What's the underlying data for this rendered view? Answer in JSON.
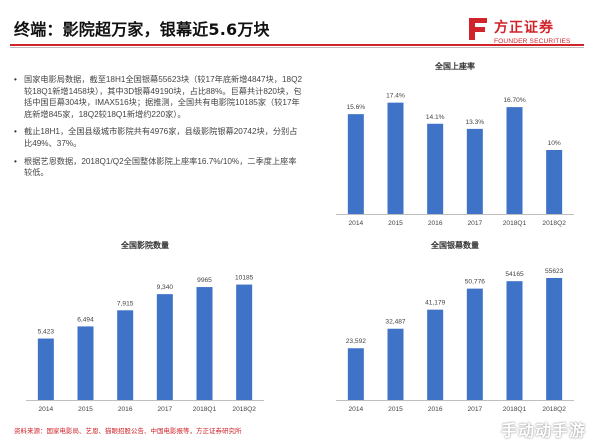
{
  "title": "终端：影院超万家，银幕近5.6万块",
  "logo": {
    "cn": "方正证券",
    "en": "FOUNDER SECURITIES",
    "color": "#d1232a"
  },
  "bullets": [
    "国家电影局数据，截至18H1全国银幕55623块（较17年底新增4847块，18Q2较18Q1新增1458块），其中3D银幕49190块，占比88%。巨幕共计820块，包括中国巨幕304块，IMAX516块；据推测，全国共有电影院10185家（较17年底新增845家，18Q2较18Q1新增约220家）。",
    "截止18H1，全国县级城市影院共有4976家，县级影院银幕20742块，分别占比49%、37%。",
    "根据艺恩数据，2018Q1/Q2全国整体影院上座率16.7%/10%，二季度上座率较低。"
  ],
  "source": "资料来源：国家电影局、艺恩、猫眼招股公告、中国电影报等，方正证券研究所",
  "watermark": "手动动手游",
  "chart_data": [
    {
      "type": "bar",
      "title": "全国上座率",
      "categories": [
        "2014",
        "2015",
        "2016",
        "2017",
        "2018Q1",
        "2018Q2"
      ],
      "values": [
        15.6,
        17.4,
        14.1,
        13.3,
        16.7,
        10.0
      ],
      "value_labels": [
        "15.6%",
        "17.4%",
        "14.1%",
        "13.3%",
        "16.70%",
        "10%"
      ],
      "ylim": [
        0,
        20
      ],
      "color": "#3f73c7",
      "grid": false
    },
    {
      "type": "bar",
      "title": "全国影院数量",
      "categories": [
        "2014",
        "2015",
        "2016",
        "2017",
        "2018Q1",
        "2018Q2"
      ],
      "values": [
        5423,
        6494,
        7915,
        9340,
        9965,
        10185
      ],
      "value_labels": [
        "5,423",
        "6,494",
        "7,915",
        "9,340",
        "9965",
        "10185"
      ],
      "ylim": [
        0,
        12000
      ],
      "color": "#3f73c7",
      "grid": false
    },
    {
      "type": "bar",
      "title": "全国银幕数量",
      "categories": [
        "2014",
        "2015",
        "2016",
        "2017",
        "2018Q1",
        "2018Q2"
      ],
      "values": [
        23592,
        32487,
        41179,
        50776,
        54165,
        55623
      ],
      "value_labels": [
        "23,592",
        "32,487",
        "41,179",
        "50,776",
        "54165",
        "55623"
      ],
      "ylim": [
        0,
        62000
      ],
      "color": "#3f73c7",
      "grid": false
    }
  ]
}
